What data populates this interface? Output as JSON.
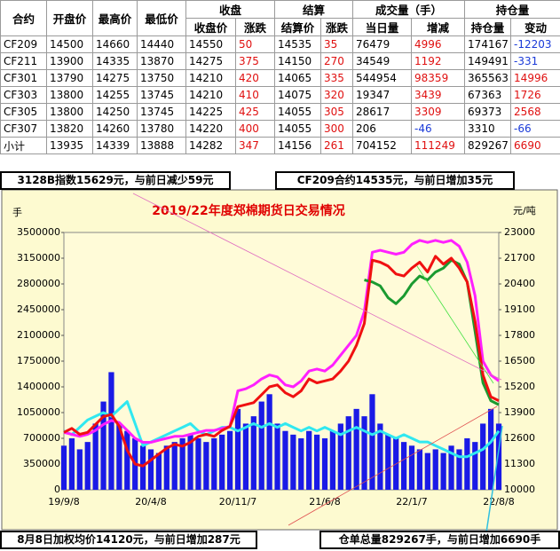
{
  "table": {
    "header": [
      "合约",
      "开盘价",
      "最高价",
      "最低价",
      "收盘",
      "结算",
      "成交量（手）",
      "持仓量"
    ],
    "subheader": [
      "收盘价",
      "涨跌",
      "结算价",
      "涨跌",
      "当日量",
      "增减",
      "持仓量",
      "变动"
    ],
    "change_columns": [
      5,
      7,
      9,
      11
    ],
    "rows": [
      [
        "CF209",
        14500,
        14660,
        14440,
        14550,
        50,
        14535,
        35,
        76479,
        4996,
        174167,
        -12203
      ],
      [
        "CF211",
        13900,
        14335,
        13870,
        14275,
        375,
        14150,
        270,
        34549,
        1192,
        149491,
        -331
      ],
      [
        "CF301",
        13790,
        14275,
        13750,
        14210,
        420,
        14065,
        335,
        544954,
        98359,
        365563,
        14996
      ],
      [
        "CF303",
        13800,
        14255,
        13745,
        14210,
        410,
        14075,
        320,
        19347,
        3439,
        67363,
        1726
      ],
      [
        "CF305",
        13800,
        14250,
        13745,
        14225,
        425,
        14055,
        305,
        28617,
        3309,
        69373,
        2568
      ],
      [
        "CF307",
        13820,
        14260,
        13780,
        14220,
        400,
        14055,
        300,
        206,
        -46,
        3310,
        -66
      ],
      [
        "小计",
        13935,
        14339,
        13888,
        14282,
        347,
        14156,
        261,
        704152,
        111249,
        829267,
        6690
      ]
    ]
  },
  "summary_boxes": [
    "3128B指数15629元，与前日减少59元",
    "CF209合约14535元，与前日增加35元",
    "8月8日加权均价14120元，与前日增加287元",
    "仓单总量829267手，与前日增加6690手"
  ],
  "chart_data": {
    "type": "combo",
    "title": "2019/22年度郑棉期货日交易情况",
    "y_label": "手",
    "y2_label": "元/吨",
    "categories": [
      "19/9/8",
      null,
      null,
      null,
      null,
      null,
      null,
      null,
      null,
      null,
      null,
      "20/4/8",
      null,
      null,
      null,
      null,
      null,
      null,
      null,
      null,
      null,
      null,
      "20/11/7",
      null,
      null,
      null,
      null,
      null,
      null,
      null,
      null,
      null,
      null,
      "21/6/8",
      null,
      null,
      null,
      null,
      null,
      null,
      null,
      null,
      null,
      null,
      "22/1/7",
      null,
      null,
      null,
      null,
      null,
      null,
      null,
      null,
      null,
      null,
      "22/8/8"
    ],
    "ylim": [
      0,
      3500000
    ],
    "yticks": [
      0,
      350000,
      700000,
      1050000,
      1400000,
      1750000,
      2100000,
      2450000,
      2800000,
      3150000,
      3500000
    ],
    "y2lim": [
      10000,
      23000
    ],
    "y2ticks": [
      10000,
      11300,
      12600,
      13900,
      15200,
      16500,
      17800,
      19100,
      20400,
      21700,
      23000
    ],
    "series": [
      {
        "type": "bar",
        "color": "#1a1ae6",
        "values": [
          600000,
          700000,
          550000,
          650000,
          900000,
          1200000,
          1600000,
          900000,
          800000,
          700000,
          600000,
          550000,
          500000,
          600000,
          650000,
          700000,
          750000,
          700000,
          650000,
          700000,
          750000,
          800000,
          1100000,
          900000,
          1000000,
          1200000,
          1300000,
          900000,
          800000,
          750000,
          700000,
          800000,
          750000,
          700000,
          800000,
          900000,
          1000000,
          1100000,
          1000000,
          1300000,
          900000,
          750000,
          700000,
          650000,
          600000,
          550000,
          500000,
          550000,
          500000,
          600000,
          550000,
          700000,
          650000,
          900000,
          1100000,
          900000
        ]
      },
      {
        "type": "line",
        "color": "#30e8f0",
        "values": [
          800000,
          750000,
          850000,
          950000,
          1000000,
          1050000,
          1000000,
          1100000,
          1200000,
          900000,
          600000,
          650000,
          700000,
          750000,
          800000,
          850000,
          900000,
          800000,
          750000,
          800000,
          850000,
          850000,
          800000,
          850000,
          900000,
          850000,
          900000,
          850000,
          900000,
          850000,
          800000,
          850000,
          800000,
          850000,
          800000,
          750000,
          800000,
          850000,
          800000,
          750000,
          800000,
          750000,
          700000,
          750000,
          700000,
          650000,
          650000,
          600000,
          550000,
          500000,
          450000,
          450000,
          500000,
          550000,
          650000,
          800000
        ]
      },
      {
        "type": "line",
        "axis": "y2",
        "color": "#ff20ff",
        "values": [
          12900,
          12800,
          12700,
          12800,
          13000,
          13300,
          13500,
          13400,
          13000,
          12600,
          12400,
          12400,
          12500,
          12600,
          12700,
          12700,
          12800,
          12900,
          13000,
          13000,
          13100,
          13200,
          15000,
          15100,
          15300,
          15600,
          15800,
          15700,
          15300,
          15200,
          15500,
          16000,
          16100,
          16000,
          16300,
          16800,
          17300,
          17800,
          19000,
          22000,
          22100,
          22000,
          21900,
          22000,
          22400,
          22600,
          22500,
          22600,
          22500,
          22600,
          22300,
          21500,
          19800,
          16500,
          15800,
          15500
        ]
      },
      {
        "type": "line",
        "axis": "y2",
        "color": "#1a9a30",
        "values": [
          null,
          null,
          null,
          null,
          null,
          null,
          null,
          null,
          null,
          null,
          null,
          null,
          null,
          null,
          null,
          null,
          null,
          null,
          null,
          null,
          null,
          null,
          null,
          null,
          null,
          null,
          null,
          null,
          null,
          null,
          null,
          null,
          null,
          null,
          null,
          null,
          null,
          null,
          20600,
          20500,
          20300,
          19700,
          19400,
          19800,
          20400,
          20800,
          20600,
          21000,
          21200,
          21600,
          21400,
          20500,
          18000,
          15400,
          14500,
          14300
        ]
      },
      {
        "type": "line",
        "axis": "y2",
        "color": "#f01010",
        "values": [
          12900,
          13100,
          12800,
          12900,
          13300,
          13700,
          13800,
          13200,
          12000,
          11300,
          11200,
          11500,
          11800,
          12100,
          12300,
          12200,
          12400,
          12700,
          12800,
          12700,
          13000,
          13200,
          14200,
          14300,
          14400,
          14800,
          15200,
          15300,
          14900,
          14700,
          15000,
          15600,
          15400,
          15500,
          15600,
          16000,
          16500,
          17300,
          18400,
          21600,
          21500,
          21300,
          20900,
          20800,
          21200,
          21500,
          21000,
          21800,
          21400,
          21700,
          21200,
          20500,
          18500,
          15800,
          14700,
          14500
        ]
      }
    ]
  }
}
